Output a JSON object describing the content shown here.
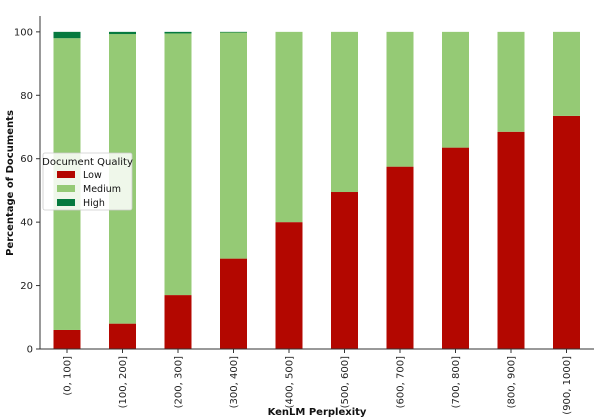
{
  "chart_data": {
    "type": "bar",
    "stacked": true,
    "xlabel": "KenLM Perplexity",
    "ylabel": "Percentage of Documents",
    "ylim": [
      0,
      105
    ],
    "yticks": [
      0,
      20,
      40,
      60,
      80,
      100
    ],
    "categories": [
      "(0, 100]",
      "(100, 200]",
      "(200, 300]",
      "(300, 400]",
      "(400, 500]",
      "(500, 600]",
      "(600, 700]",
      "(700, 800]",
      "(800, 900]",
      "(900, 1000]"
    ],
    "series": [
      {
        "name": "Low",
        "color": "#b30700",
        "values": [
          6,
          8,
          17,
          28.5,
          40,
          49.5,
          57.5,
          63.5,
          68.5,
          73.5
        ]
      },
      {
        "name": "Medium",
        "color": "#95ca75",
        "values": [
          92,
          91.3,
          82.5,
          71.3,
          60,
          50.5,
          42.5,
          36.5,
          31.5,
          26.5
        ]
      },
      {
        "name": "High",
        "color": "#067a3f",
        "values": [
          2,
          0.7,
          0.5,
          0.2,
          0,
          0,
          0,
          0,
          0,
          0
        ]
      }
    ],
    "legend": {
      "title": "Document Quality",
      "placement": "center-left"
    },
    "grid": false
  }
}
